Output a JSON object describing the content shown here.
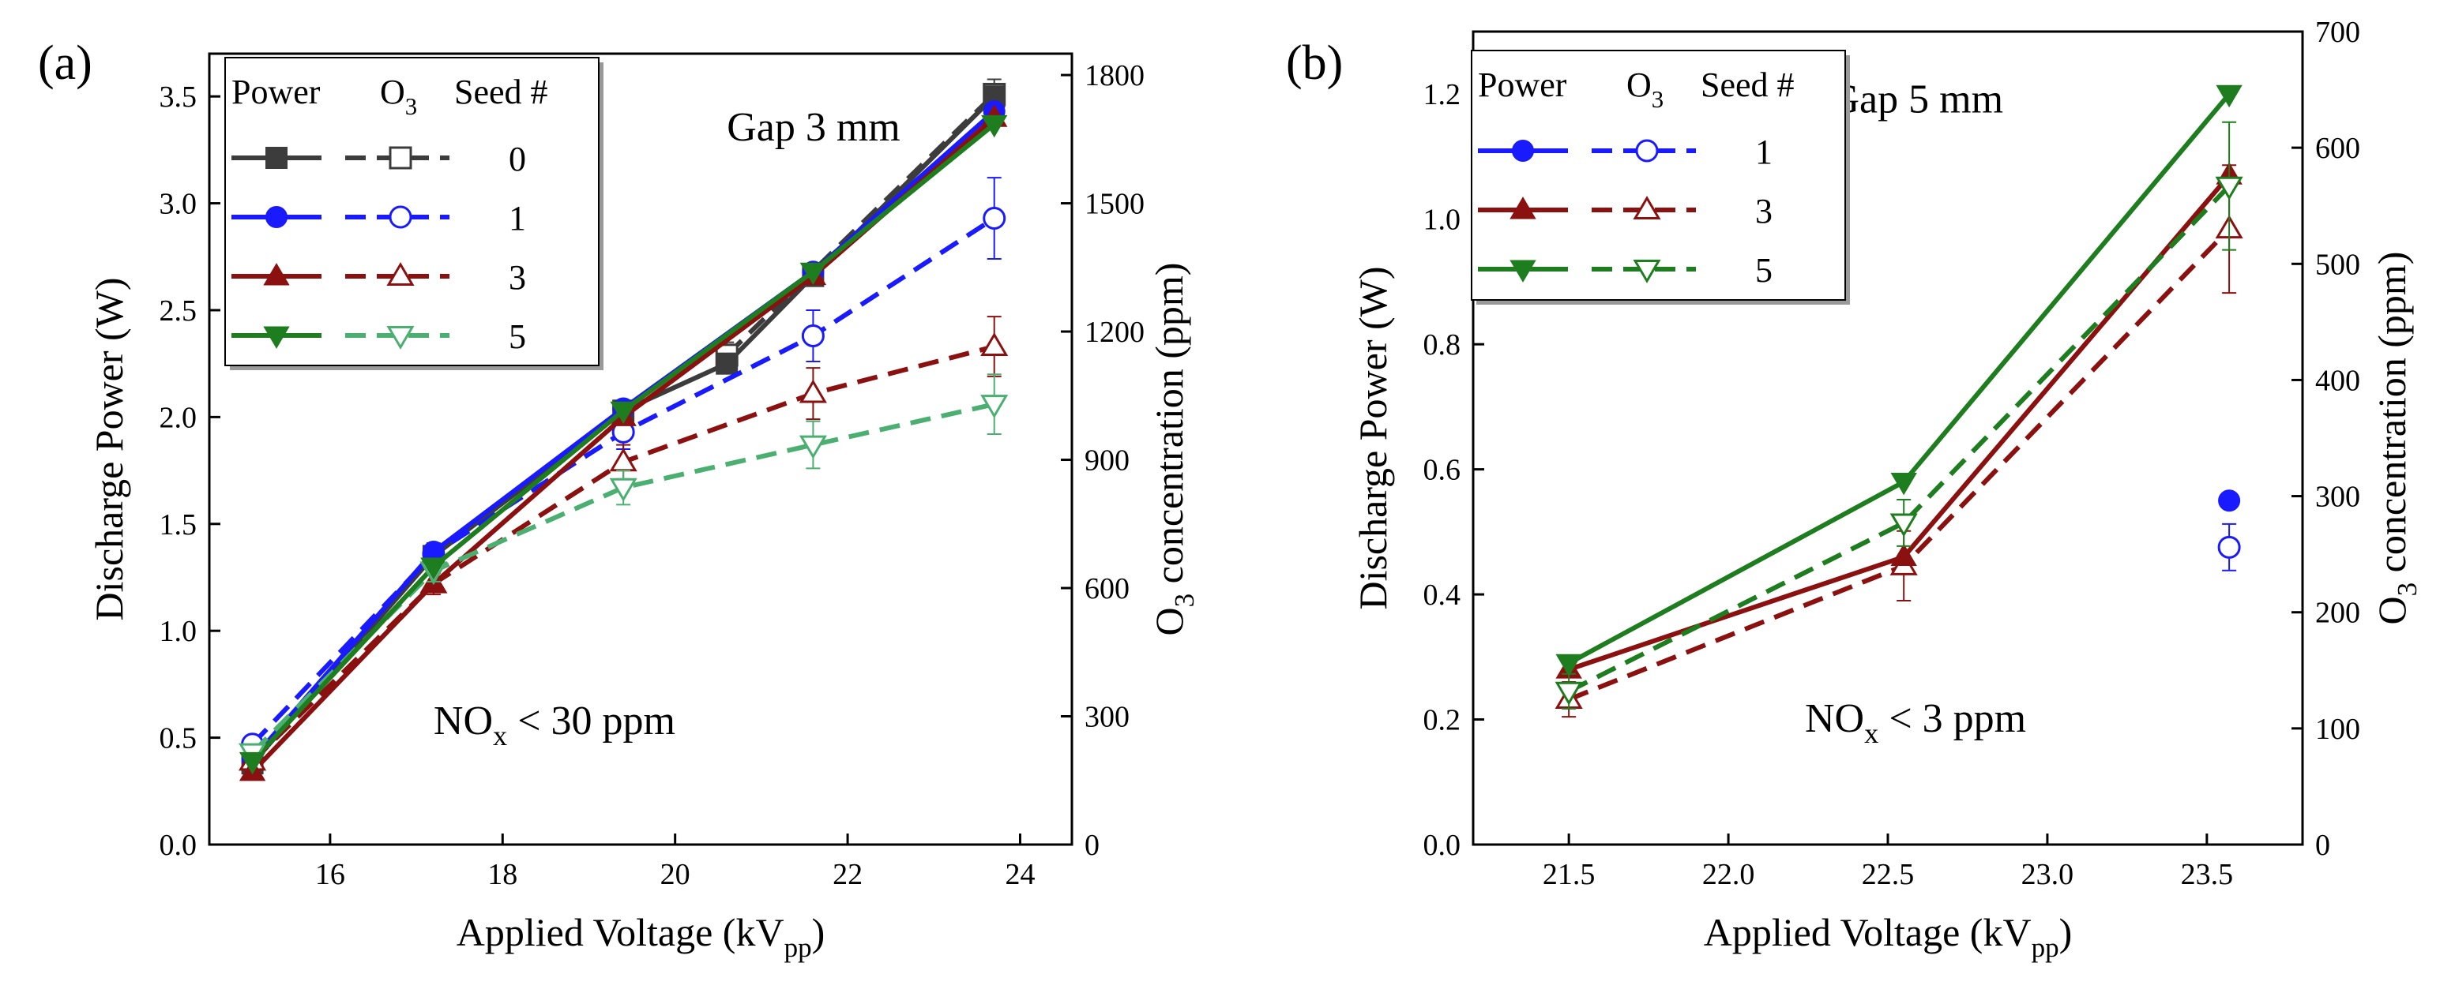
{
  "chart_data": [
    {
      "panel_label": "(a)",
      "type": "line",
      "annotation": "Gap 3 mm",
      "nox_note": {
        "base": "NO",
        "sub": "x",
        "rest": " < 30 ppm"
      },
      "xlabel": {
        "base": "Applied Voltage (kV",
        "sub": "pp",
        "close": ")"
      },
      "ylabel": "Discharge Power (W)",
      "y2label": {
        "base": "O",
        "sub": "3",
        "rest": " concentration (ppm)"
      },
      "xlim": [
        14.6,
        24.6
      ],
      "ylim": [
        0,
        3.7
      ],
      "y2lim": [
        0,
        1850
      ],
      "xticks": [
        16,
        18,
        20,
        22,
        24
      ],
      "yticks": [
        0.0,
        0.5,
        1.0,
        1.5,
        2.0,
        2.5,
        3.0,
        3.5
      ],
      "y2ticks": [
        0,
        300,
        600,
        900,
        1200,
        1500,
        1800
      ],
      "legend": {
        "headers": {
          "power": "Power",
          "o3_base": "O",
          "o3_sub": "3",
          "seed": "Seed #"
        },
        "position": "top-left"
      },
      "series": [
        {
          "seed": "0",
          "color": "#3c3c3c",
          "marker": "square",
          "power": {
            "x": [
              15.1,
              17.2,
              19.4,
              20.6,
              21.6,
              23.7
            ],
            "y": [
              0.38,
              1.35,
              2.03,
              2.25,
              2.66,
              3.5
            ]
          },
          "o3": {
            "x": [
              20.6,
              23.7
            ],
            "y": [
              1145,
              1755
            ],
            "err": [
              30,
              35
            ]
          }
        },
        {
          "seed": "1",
          "color": "#1a1aff",
          "marker": "circle",
          "power": {
            "x": [
              15.1,
              17.2,
              19.4,
              21.6,
              23.7
            ],
            "y": [
              0.4,
              1.37,
              2.04,
              2.68,
              3.43
            ]
          },
          "o3": {
            "x": [
              15.1,
              17.2,
              19.4,
              21.6,
              23.7
            ],
            "y": [
              235,
              680,
              965,
              1190,
              1465
            ],
            "err": [
              20,
              25,
              40,
              60,
              95
            ]
          }
        },
        {
          "seed": "3",
          "color": "#8b1010",
          "marker": "triangle-up",
          "power": {
            "x": [
              15.1,
              17.2,
              19.4,
              21.6,
              23.7
            ],
            "y": [
              0.34,
              1.22,
              2.0,
              2.66,
              3.4
            ]
          },
          "o3": {
            "x": [
              15.1,
              17.2,
              19.4,
              21.6,
              23.7
            ],
            "y": [
              195,
              610,
              895,
              1055,
              1165
            ],
            "err": [
              20,
              25,
              40,
              60,
              70
            ]
          }
        },
        {
          "seed": "5",
          "color": "#1e7d1e",
          "light_color": "#4caf72",
          "marker": "triangle-down",
          "power": {
            "x": [
              15.1,
              17.2,
              19.4,
              21.6,
              23.7
            ],
            "y": [
              0.39,
              1.3,
              2.03,
              2.68,
              3.37
            ]
          },
          "o3": {
            "x": [
              15.1,
              17.2,
              19.4,
              21.6,
              23.7
            ],
            "y": [
              215,
              640,
              835,
              935,
              1030
            ],
            "err": [
              20,
              25,
              40,
              55,
              70
            ]
          }
        }
      ]
    },
    {
      "panel_label": "(b)",
      "type": "line",
      "annotation": "Gap 5 mm",
      "nox_note": {
        "base": "NO",
        "sub": "x",
        "rest": " < 3 ppm"
      },
      "xlabel": {
        "base": "Applied Voltage (kV",
        "sub": "pp",
        "close": ")"
      },
      "ylabel": "Discharge Power (W)",
      "y2label": {
        "base": "O",
        "sub": "3",
        "rest": " concentration (ppm)"
      },
      "xlim": [
        21.2,
        23.8
      ],
      "ylim": [
        0,
        1.3
      ],
      "y2lim": [
        0,
        700
      ],
      "xticks": [
        21.5,
        22.0,
        22.5,
        23.0,
        23.5
      ],
      "yticks": [
        0.0,
        0.2,
        0.4,
        0.6,
        0.8,
        1.0,
        1.2
      ],
      "y2ticks": [
        0,
        100,
        200,
        300,
        400,
        500,
        600,
        700
      ],
      "legend": {
        "headers": {
          "power": "Power",
          "o3_base": "O",
          "o3_sub": "3",
          "seed": "Seed #"
        },
        "position": "top-left"
      },
      "series": [
        {
          "seed": "1",
          "color": "#1a1aff",
          "marker": "circle",
          "power": {
            "x": [
              23.57
            ],
            "y": [
              0.55
            ]
          },
          "o3": {
            "x": [
              23.57
            ],
            "y": [
              256
            ],
            "err": [
              20
            ]
          }
        },
        {
          "seed": "3",
          "color": "#8b1010",
          "marker": "triangle-up",
          "power": {
            "x": [
              21.5,
              22.55,
              23.57
            ],
            "y": [
              0.28,
              0.46,
              1.07
            ]
          },
          "o3": {
            "x": [
              21.5,
              22.55,
              23.57
            ],
            "y": [
              125,
              240,
              530
            ],
            "err": [
              15,
              30,
              55
            ]
          }
        },
        {
          "seed": "5",
          "color": "#1e7d1e",
          "marker": "triangle-down",
          "power": {
            "x": [
              21.5,
              22.55,
              23.57
            ],
            "y": [
              0.29,
              0.58,
              1.2
            ]
          },
          "o3": {
            "x": [
              21.5,
              22.55,
              23.57
            ],
            "y": [
              132,
              277,
              567
            ],
            "err": [
              15,
              20,
              55
            ]
          }
        }
      ]
    }
  ]
}
